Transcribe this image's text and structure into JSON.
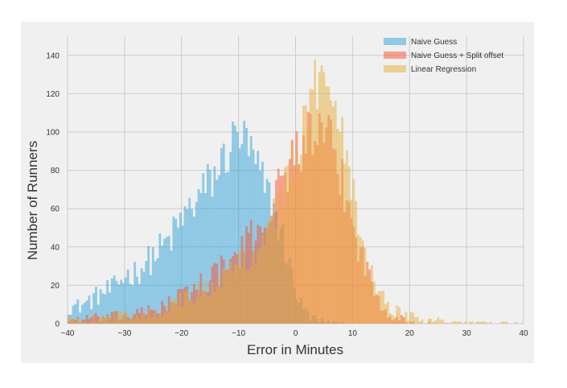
{
  "chart_data": {
    "type": "bar",
    "subtype": "overlaid-histogram",
    "title": "",
    "xlabel": "Error in Minutes",
    "ylabel": "Number of Runners",
    "xlim": [
      -40,
      40
    ],
    "ylim": [
      0,
      150
    ],
    "xticks": [
      -40,
      -30,
      -20,
      -10,
      0,
      10,
      20,
      30,
      40
    ],
    "yticks": [
      0,
      20,
      40,
      60,
      80,
      100,
      120,
      140
    ],
    "bin_width": 0.4,
    "grid": true,
    "legend_position": "top-right",
    "colors": {
      "background": "#f0f0f0",
      "grid": "#cbcbcb",
      "naive": "#30a2da",
      "split": "#fc4f30",
      "linear": "#e5ae38"
    },
    "series": [
      {
        "name": "Naive Guess",
        "color": "#30a2da",
        "bin_anchors": [
          [
            -40,
            9
          ],
          [
            -38,
            9
          ],
          [
            -36,
            12
          ],
          [
            -34,
            16
          ],
          [
            -32,
            18
          ],
          [
            -30,
            25
          ],
          [
            -28,
            27
          ],
          [
            -26,
            32
          ],
          [
            -24,
            38
          ],
          [
            -22,
            44
          ],
          [
            -20,
            54
          ],
          [
            -18,
            62
          ],
          [
            -16,
            70
          ],
          [
            -14,
            78
          ],
          [
            -12,
            89
          ],
          [
            -10,
            100
          ],
          [
            -8,
            90
          ],
          [
            -6,
            75
          ],
          [
            -4,
            62
          ],
          [
            -2,
            42
          ],
          [
            0,
            18
          ],
          [
            1,
            10
          ],
          [
            2,
            5
          ],
          [
            3,
            3
          ],
          [
            4,
            2
          ],
          [
            6,
            1
          ],
          [
            8,
            0.5
          ],
          [
            10,
            0
          ]
        ]
      },
      {
        "name": "Naive Guess + Split offset",
        "color": "#fc4f30",
        "bin_anchors": [
          [
            -40,
            2
          ],
          [
            -35,
            3
          ],
          [
            -30,
            4
          ],
          [
            -26,
            6
          ],
          [
            -22,
            11
          ],
          [
            -18,
            18
          ],
          [
            -15,
            24
          ],
          [
            -12,
            30
          ],
          [
            -10,
            36
          ],
          [
            -8,
            44
          ],
          [
            -6,
            52
          ],
          [
            -4,
            62
          ],
          [
            -2,
            78
          ],
          [
            0,
            90
          ],
          [
            2,
            97
          ],
          [
            4,
            98
          ],
          [
            6,
            94
          ],
          [
            8,
            76
          ],
          [
            10,
            52
          ],
          [
            12,
            32
          ],
          [
            14,
            16
          ],
          [
            16,
            7
          ],
          [
            18,
            3
          ],
          [
            20,
            1
          ],
          [
            22,
            0.4
          ],
          [
            24,
            0
          ]
        ]
      },
      {
        "name": "Linear Regression",
        "color": "#e5ae38",
        "bin_anchors": [
          [
            -40,
            2
          ],
          [
            -35,
            3
          ],
          [
            -30,
            4
          ],
          [
            -26,
            5
          ],
          [
            -22,
            9
          ],
          [
            -18,
            14
          ],
          [
            -15,
            20
          ],
          [
            -12,
            26
          ],
          [
            -10,
            30
          ],
          [
            -8,
            36
          ],
          [
            -6,
            44
          ],
          [
            -4,
            55
          ],
          [
            -2,
            70
          ],
          [
            0,
            88
          ],
          [
            2,
            110
          ],
          [
            4,
            126
          ],
          [
            5,
            132
          ],
          [
            6,
            130
          ],
          [
            8,
            108
          ],
          [
            10,
            72
          ],
          [
            12,
            40
          ],
          [
            14,
            20
          ],
          [
            16,
            10
          ],
          [
            18,
            6
          ],
          [
            20,
            4
          ],
          [
            22,
            3
          ],
          [
            24,
            2
          ],
          [
            26,
            1.5
          ],
          [
            28,
            1
          ],
          [
            30,
            0.8
          ],
          [
            34,
            0.5
          ],
          [
            39.6,
            0.4
          ],
          [
            40,
            0
          ]
        ]
      }
    ]
  }
}
